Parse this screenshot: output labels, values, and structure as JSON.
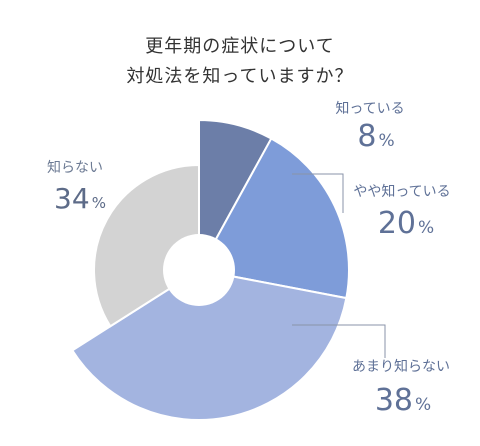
{
  "chart_data": {
    "type": "pie",
    "title_lines": [
      "更年期の症状について",
      "対処法を知っていますか？"
    ],
    "unit": "%",
    "slices": [
      {
        "label": "知っている",
        "value": 8,
        "color": "#6c7ea8"
      },
      {
        "label": "やや知っている",
        "value": 20,
        "color": "#7e9cd9"
      },
      {
        "label": "あまり知らない",
        "value": 38,
        "color": "#a3b4e0"
      },
      {
        "label": "知らない",
        "value": 34,
        "color": "#d3d3d3"
      }
    ]
  }
}
